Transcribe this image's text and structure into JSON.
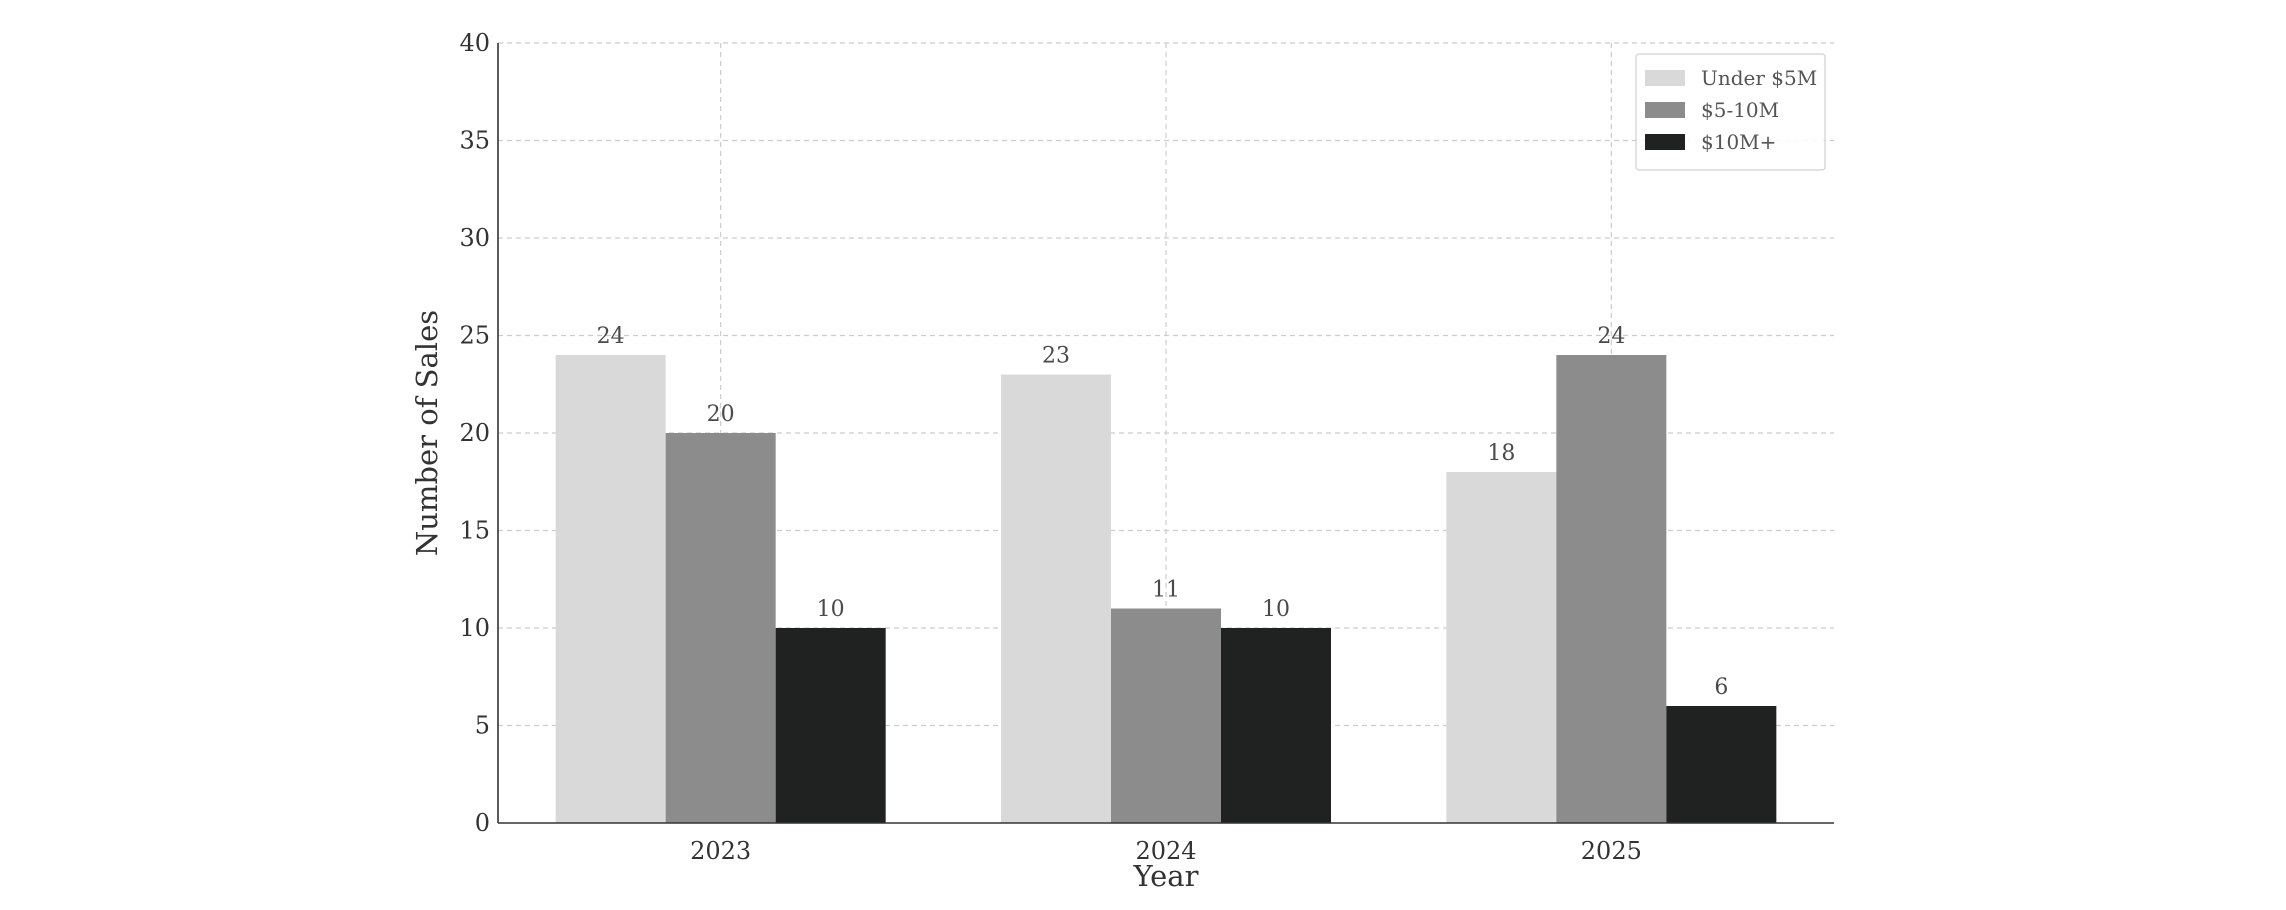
{
  "chart_data": {
    "type": "bar",
    "categories": [
      "2023",
      "2024",
      "2025"
    ],
    "series": [
      {
        "name": "Under $5M",
        "values": [
          24,
          23,
          18
        ],
        "color": "#d9d9d9"
      },
      {
        "name": "$5-10M",
        "values": [
          20,
          11,
          24
        ],
        "color": "#8c8c8c"
      },
      {
        "name": "$10M+",
        "values": [
          10,
          10,
          6
        ],
        "color": "#202221"
      }
    ],
    "title": "",
    "xlabel": "Year",
    "ylabel": "Number of Sales",
    "ylim": [
      0,
      40
    ],
    "yticks": [
      0,
      5,
      10,
      15,
      20,
      25,
      30,
      35,
      40
    ],
    "grid": true,
    "legend_position": "top-right",
    "colors": {
      "grid": "#cccccc",
      "axis": "#333333",
      "text": "#333333"
    }
  }
}
